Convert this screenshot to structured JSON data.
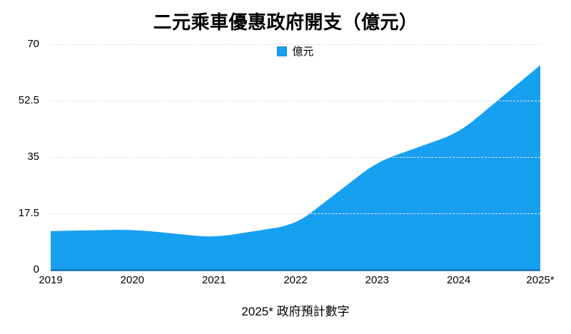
{
  "title": "二元乘車優惠政府開支（億元）",
  "legend": {
    "label": "億元"
  },
  "footnote": "2025* 政府預計數字",
  "colors": {
    "area": "#18a0f0",
    "legend_swatch_border": "#1486cf",
    "baseline": "#1e79c0",
    "gridline": "#e1e1e1",
    "text": "#000000"
  },
  "chart_data": {
    "type": "area",
    "title": "二元乘車優惠政府開支（億元）",
    "categories": [
      "2019",
      "2020",
      "2021",
      "2022",
      "2023",
      "2024",
      "2025*"
    ],
    "series": [
      {
        "name": "億元",
        "values": [
          12,
          12.5,
          10,
          14,
          33.5,
          42.5,
          63.5
        ]
      }
    ],
    "ylim": [
      0,
      70
    ],
    "y_ticks": [
      0,
      17.5,
      35,
      52.5,
      70
    ],
    "grid": "horizontal-dashed",
    "legend_position": "top-center",
    "annotation": "2025* 政府預計數字"
  }
}
